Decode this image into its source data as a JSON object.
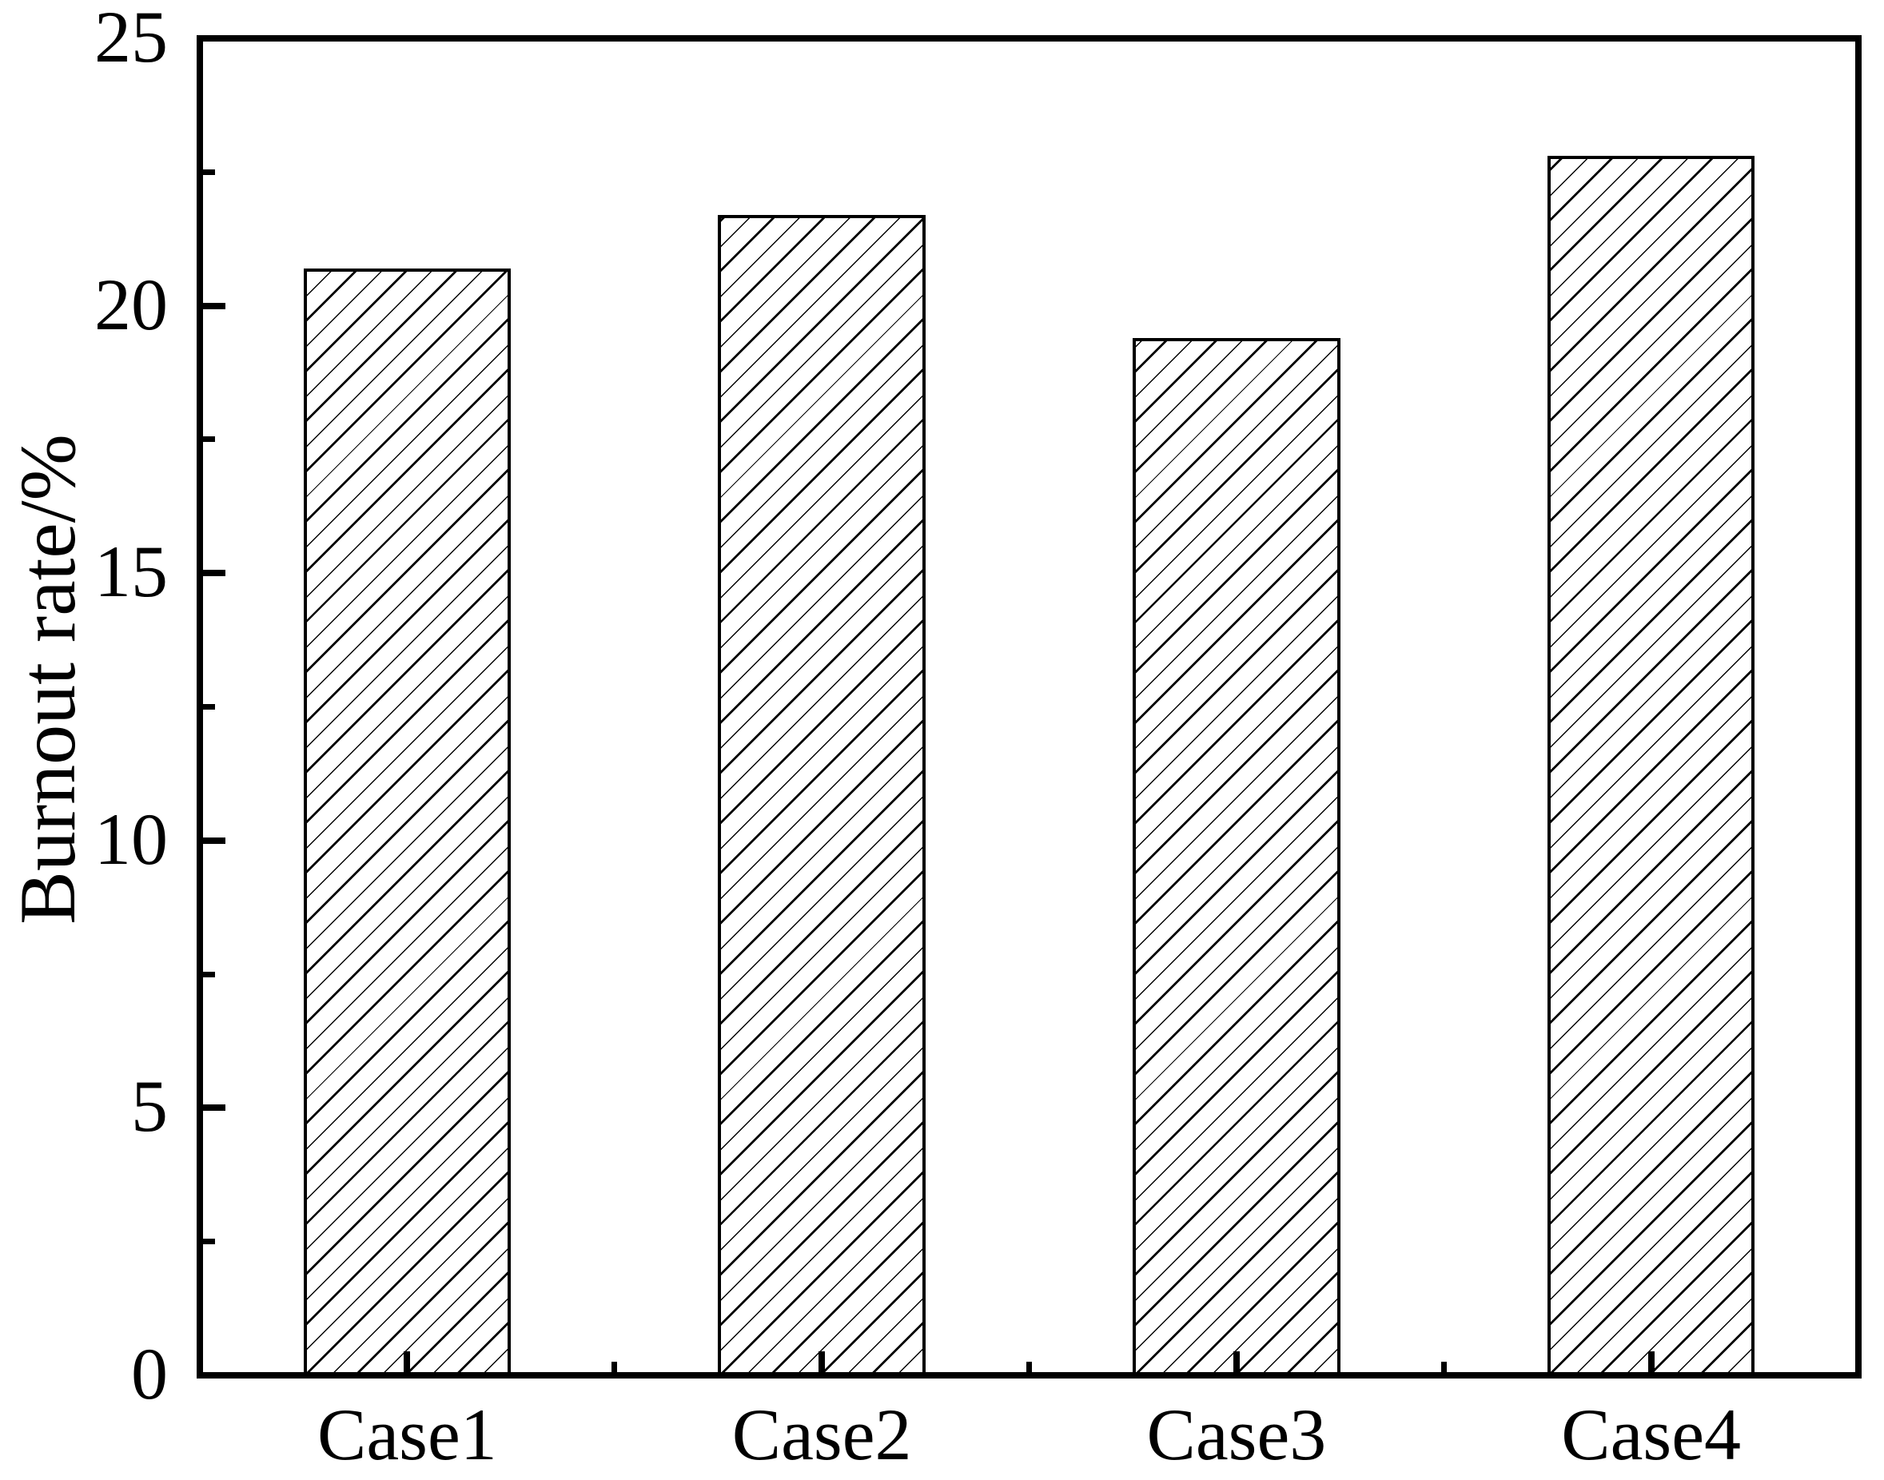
{
  "figure": {
    "background": "#ffffff",
    "line_color": "#000000"
  },
  "chart_data": {
    "type": "bar",
    "categories": [
      "Case1",
      "Case2",
      "Case3",
      "Case4"
    ],
    "values": [
      20.7,
      21.7,
      19.4,
      22.8
    ],
    "title": "",
    "xlabel": "",
    "ylabel": "Burnout rate/%",
    "ylim": [
      0,
      25
    ],
    "yticks_major": [
      0,
      5,
      10,
      15,
      20,
      25
    ],
    "yticklabels": [
      "0",
      "5",
      "10",
      "15",
      "20",
      "25"
    ],
    "yticks_minor": [
      2.5,
      7.5,
      12.5,
      17.5,
      22.5
    ],
    "bar_width_fraction": 0.5,
    "bar_fill": "#ffffff",
    "bar_edge_color": "#000000",
    "hatch": "/",
    "grid": false,
    "legend": "none"
  }
}
